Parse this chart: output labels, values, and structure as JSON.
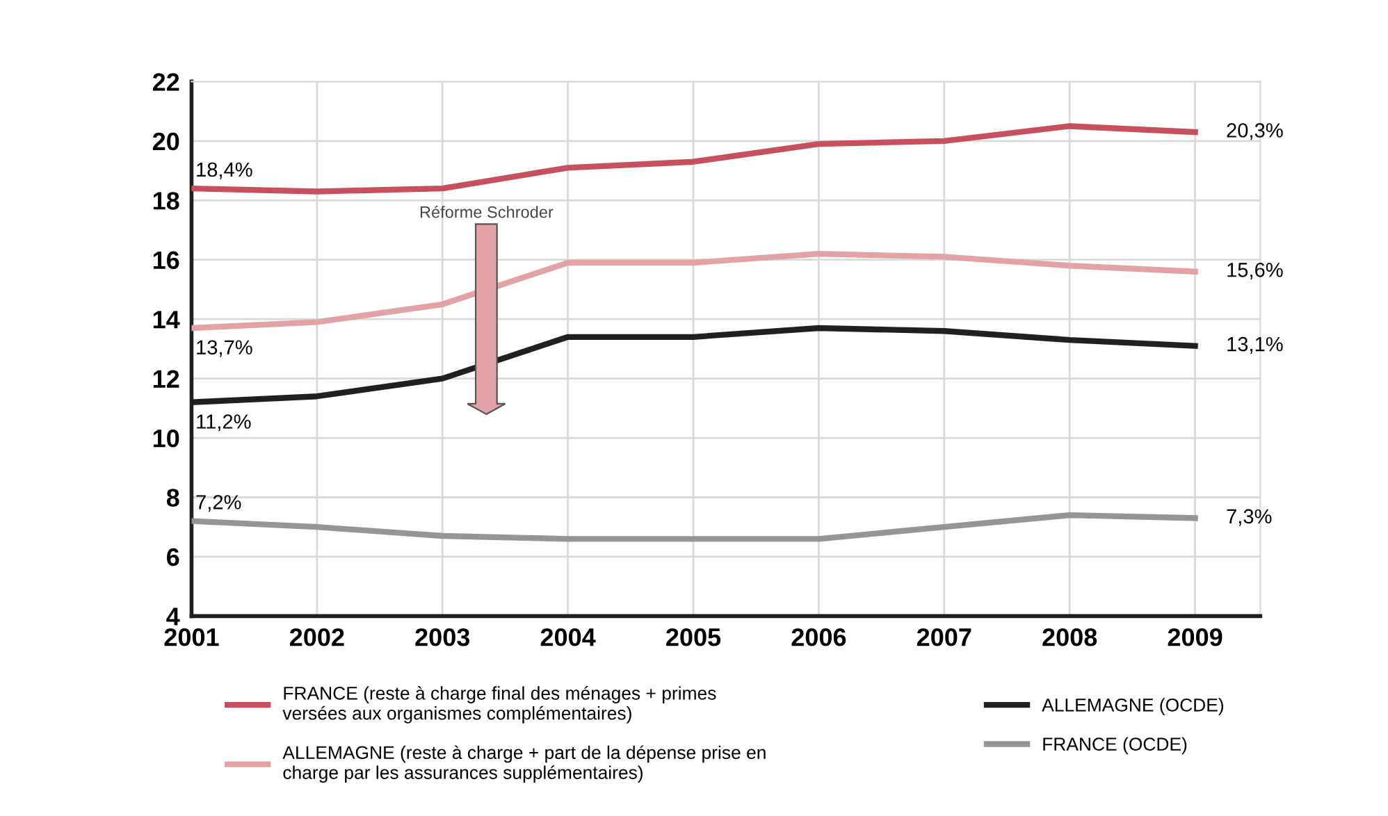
{
  "chart_data": {
    "type": "line",
    "x": [
      2001,
      2002,
      2003,
      2004,
      2005,
      2006,
      2007,
      2008,
      2009
    ],
    "xlim": [
      2001,
      2009.52
    ],
    "xticks": [
      2001,
      2002,
      2003,
      2004,
      2005,
      2006,
      2007,
      2008,
      2009
    ],
    "ylim": [
      4,
      22
    ],
    "yticks": [
      4,
      6,
      8,
      10,
      12,
      14,
      16,
      18,
      20,
      22
    ],
    "grid": true,
    "legend": "bottom",
    "marker": "none",
    "line_style": "solid",
    "annotations": [
      "Réforme Schroder"
    ],
    "series": [
      {
        "name": "FRANCE (reste à charge final des ménages + primes\nversées aux organismes complémentaires)",
        "color": "#c8505e",
        "values": [
          18.4,
          18.3,
          18.4,
          19.1,
          19.3,
          19.9,
          20.0,
          20.5,
          20.3
        ],
        "value_labels": [
          "18,4%",
          null,
          null,
          null,
          null,
          null,
          null,
          null,
          "20,3%"
        ]
      },
      {
        "name": "ALLEMAGNE (reste à charge + part de la dépense prise en\ncharge par les assurances supplémentaires)",
        "color": "#e3a3a6",
        "values": [
          13.7,
          13.9,
          14.5,
          15.9,
          15.9,
          16.2,
          16.1,
          15.8,
          15.6
        ],
        "value_labels": [
          "13,7%",
          null,
          null,
          null,
          null,
          null,
          null,
          null,
          "15,6%"
        ]
      },
      {
        "name": "ALLEMAGNE (OCDE)",
        "color": "#231f20",
        "values": [
          11.2,
          11.4,
          12.0,
          13.4,
          13.4,
          13.7,
          13.6,
          13.3,
          13.1
        ],
        "value_labels": [
          "11,2%",
          null,
          null,
          null,
          null,
          null,
          null,
          null,
          "13,1%"
        ]
      },
      {
        "name": "FRANCE (OCDE)",
        "color": "#939598",
        "values": [
          7.2,
          7.0,
          6.7,
          6.6,
          6.6,
          6.6,
          7.0,
          7.4,
          7.3
        ],
        "value_labels": [
          "7,2%",
          null,
          null,
          null,
          null,
          null,
          null,
          null,
          "7,3%"
        ]
      }
    ]
  }
}
